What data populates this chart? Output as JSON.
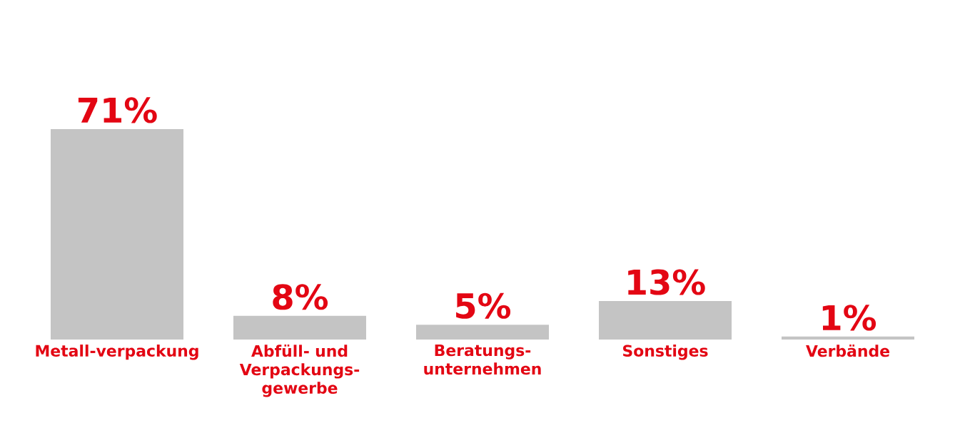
{
  "chart_data": {
    "type": "bar",
    "categories": [
      "Metall-verpackung",
      "Abfüll- und Verpackungs-gewerbe",
      "Beratungs-unternehmen",
      "Sonstiges",
      "Verbände"
    ],
    "values": [
      71,
      8,
      5,
      13,
      1
    ],
    "value_labels": [
      "71%",
      "8%",
      "5%",
      "13%",
      "1%"
    ],
    "color": "#c4c4c4"
  }
}
